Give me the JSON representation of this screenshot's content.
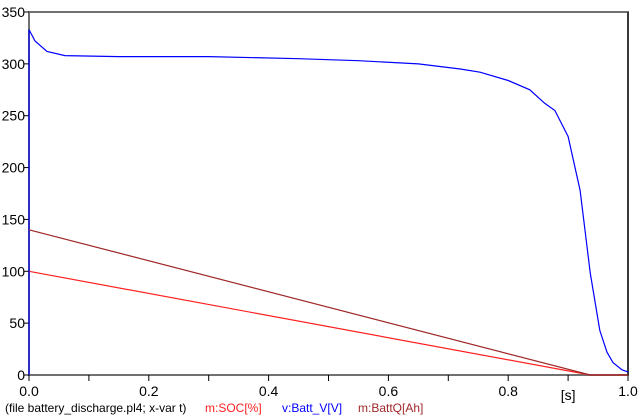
{
  "chart_data": {
    "type": "line",
    "title": "",
    "xlabel": "[s]",
    "ylabel": "",
    "xlim": [
      0,
      1.0
    ],
    "ylim": [
      0,
      350
    ],
    "x_ticks": [
      "0.0",
      "0.2",
      "0.4",
      "0.6",
      "0.8",
      "1.0"
    ],
    "y_ticks": [
      "0",
      "50",
      "100",
      "150",
      "200",
      "250",
      "300",
      "350"
    ],
    "footer": "(file battery_discharge.pl4; x-var t)",
    "series": [
      {
        "name": "m:SOC[%]",
        "color": "#ff2020",
        "x": [
          0,
          0.937,
          1.0
        ],
        "y": [
          100,
          0,
          0
        ]
      },
      {
        "name": "v:Batt_V[V]",
        "color": "#0000ff",
        "x": [
          0,
          0,
          0.01,
          0.03,
          0.06,
          0.15,
          0.3,
          0.45,
          0.55,
          0.65,
          0.72,
          0.753,
          0.8,
          0.836,
          0.861,
          0.878,
          0.9,
          0.92,
          0.937,
          0.953,
          0.965,
          0.975,
          0.99,
          1.0
        ],
        "y": [
          0,
          333,
          322,
          312,
          308,
          307,
          307,
          305,
          303,
          300,
          295,
          292,
          284,
          275,
          262,
          255,
          230,
          178,
          98,
          43,
          22,
          12,
          5,
          3
        ]
      },
      {
        "name": "m:BattQ[Ah]",
        "color": "#a02828",
        "x": [
          0,
          0.937,
          1.0
        ],
        "y": [
          140,
          0,
          0
        ]
      }
    ]
  }
}
